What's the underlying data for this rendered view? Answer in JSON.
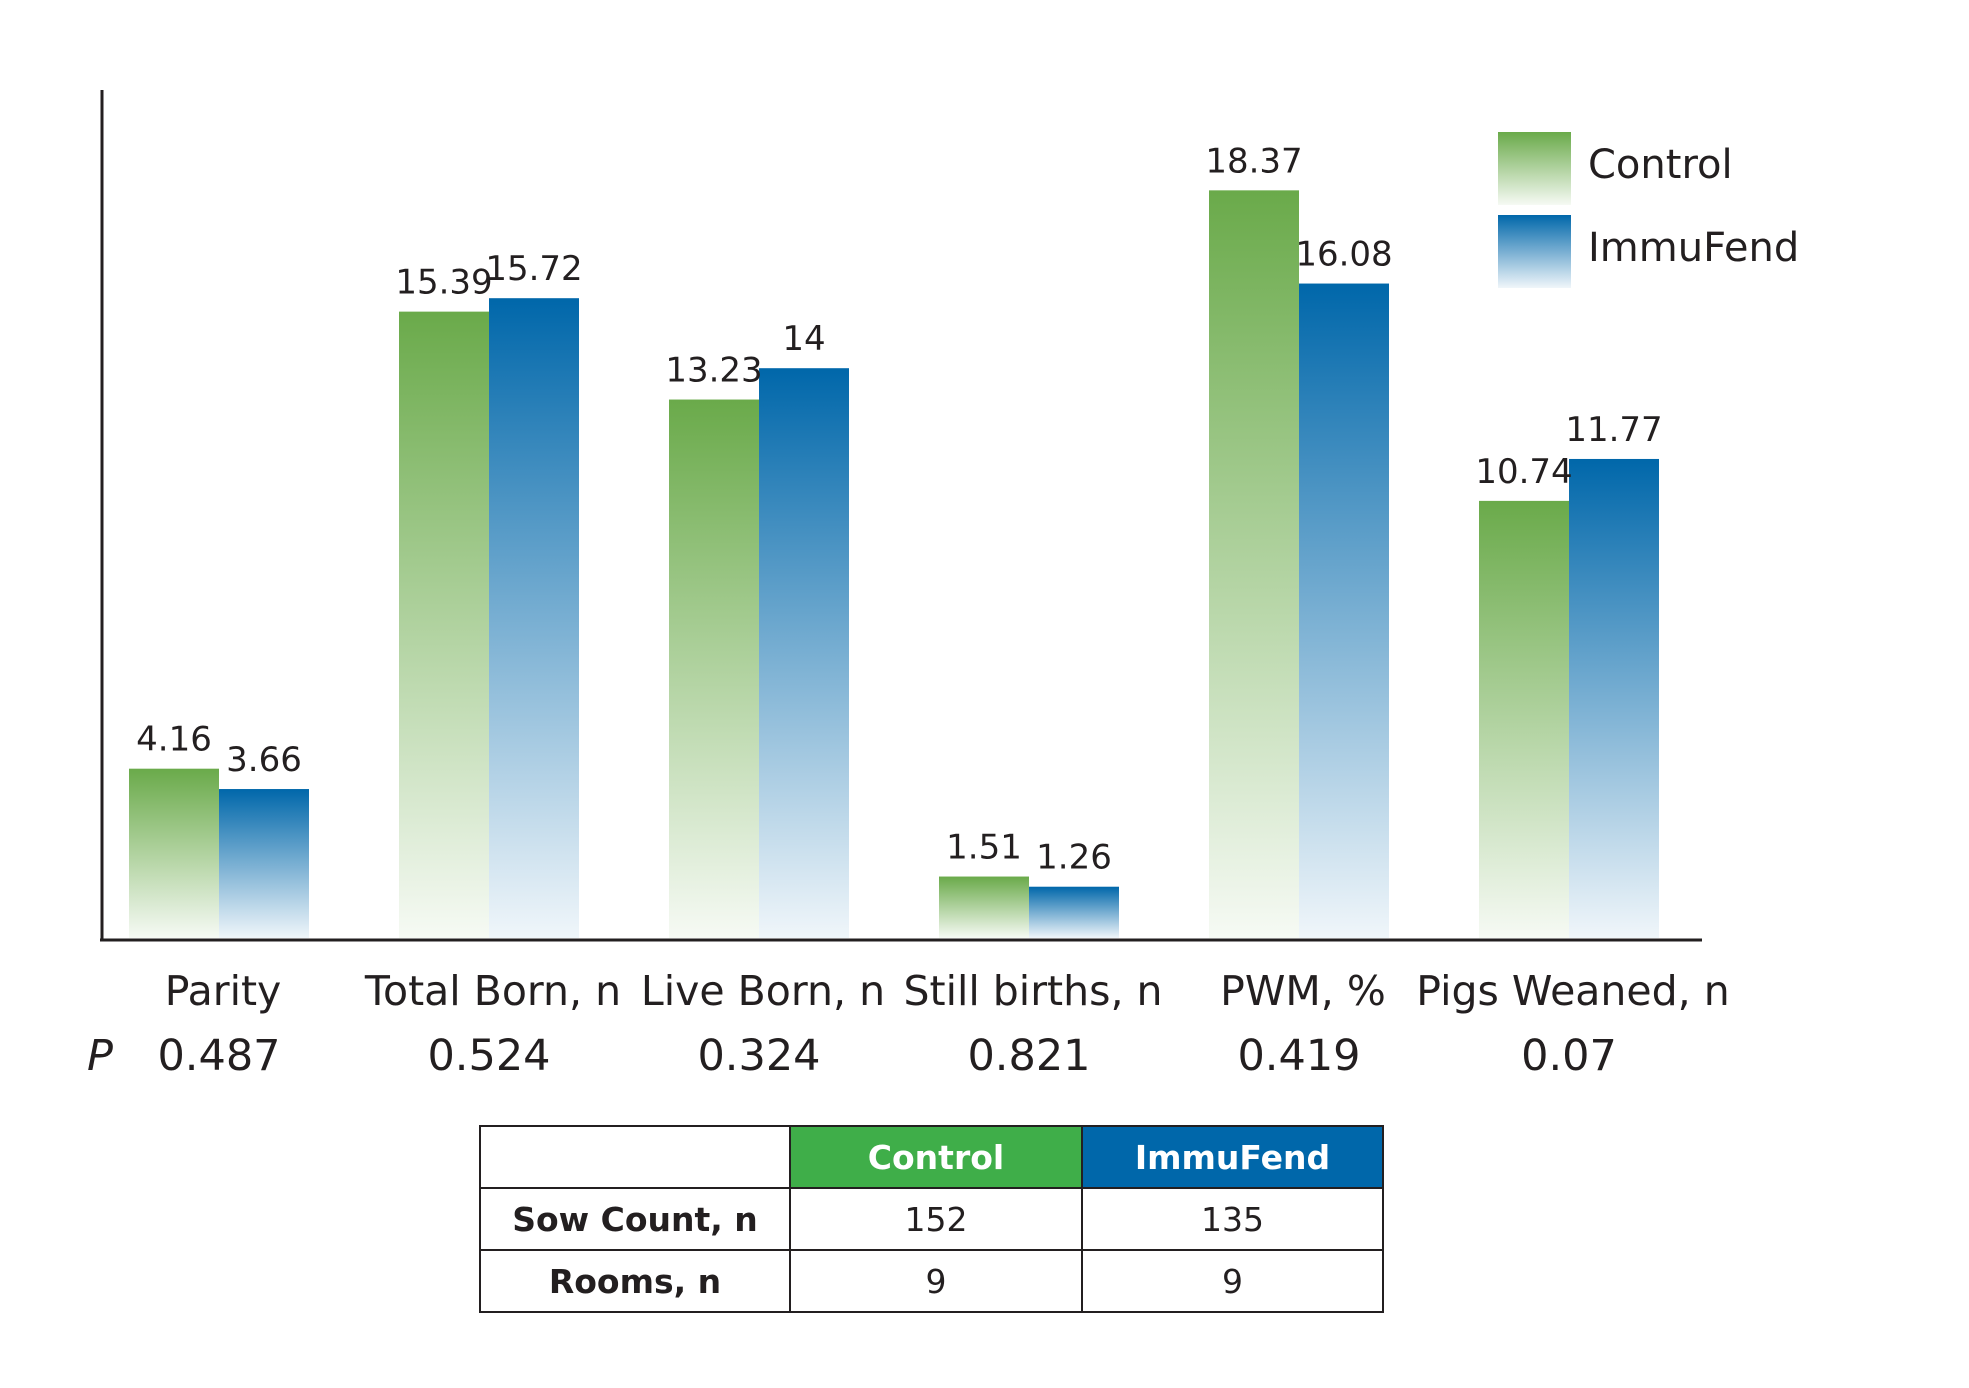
{
  "chart_data": {
    "type": "bar",
    "categories": [
      "Parity",
      "Total Born, n",
      "Live Born, n",
      "Still births, n",
      "PWM, %",
      "Pigs Weaned, n"
    ],
    "series": [
      {
        "name": "Control",
        "values": [
          4.16,
          15.39,
          13.23,
          1.51,
          18.37,
          10.74
        ],
        "color": "#6aaa4a"
      },
      {
        "name": "ImmuFend",
        "values": [
          3.66,
          15.72,
          14,
          1.26,
          16.08,
          11.77
        ],
        "color": "#0067aa"
      }
    ],
    "value_labels": {
      "Control": [
        "4.16",
        "15.39",
        "13.23",
        "1.51",
        "18.37",
        "10.74"
      ],
      "ImmuFend": [
        "3.66",
        "15.72",
        "14",
        "1.26",
        "16.08",
        "11.77"
      ]
    },
    "p_label": "P",
    "p_values": [
      "0.487",
      "0.524",
      "0.324",
      "0.821",
      "0.419",
      "0.07"
    ],
    "legend_position": "top-right",
    "grid": false
  },
  "table": {
    "headers": [
      "",
      "Control",
      "ImmuFend"
    ],
    "header_colors": {
      "Control": "#3fae49",
      "ImmuFend": "#0067aa"
    },
    "rows": [
      {
        "label": "Sow Count, n",
        "control": "152",
        "immufend": "135"
      },
      {
        "label": "Rooms, n",
        "control": "9",
        "immufend": "9"
      }
    ]
  }
}
